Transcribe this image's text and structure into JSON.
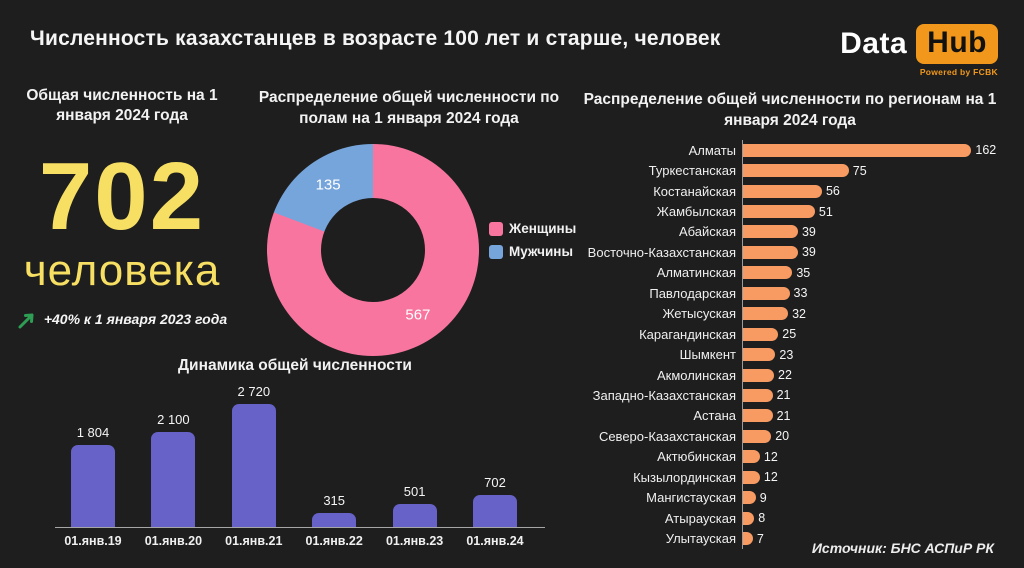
{
  "header": {
    "title": "Численность казахстанцев в возрасте 100 лет и старше, человек",
    "logo": {
      "data": "Data",
      "hub": "Hub",
      "powered": "Powered by FCBK",
      "orange": "#F1981C"
    }
  },
  "summary": {
    "title": "Общая численность на 1 января 2024 года",
    "value": "702",
    "unit": "человека",
    "change": "+40% к 1 января 2023 года",
    "value_color": "#F6DF63",
    "arrow_color": "#2E9E54",
    "arrow_icon": "up-right-arrow"
  },
  "source": "Источник: БНС АСПиР РК",
  "chart_data": [
    {
      "id": "gender_donut",
      "type": "pie",
      "donut": true,
      "title": "Распределение общей численности по полам на 1 января 2024 года",
      "labels": [
        "Женщины",
        "Мужчины"
      ],
      "values": [
        567,
        135
      ],
      "value_labels": [
        "567",
        "135"
      ],
      "colors": [
        "#F8759F",
        "#76A5DC"
      ],
      "legend_position": "right",
      "start_angle_deg": 0,
      "direction": "clockwise"
    },
    {
      "id": "dynamics_bar",
      "type": "bar",
      "title": "Динамика общей численности",
      "categories": [
        "01.янв.19",
        "01.янв.20",
        "01.янв.21",
        "01.янв.22",
        "01.янв.23",
        "01.янв.24"
      ],
      "values": [
        1804,
        2100,
        2720,
        315,
        501,
        702
      ],
      "value_labels": [
        "1 804",
        "2 100",
        "2 720",
        "315",
        "501",
        "702"
      ],
      "bar_color": "#6662C8",
      "ylim": [
        0,
        2900
      ],
      "grid": false,
      "value_labels_position": "above"
    },
    {
      "id": "regions_bar",
      "type": "bar",
      "orientation": "horizontal",
      "title": "Распределение общей численности по регионам на 1 января 2024 года",
      "categories": [
        "Алматы",
        "Туркестанская",
        "Костанайская",
        "Жамбылская",
        "Абайская",
        "Восточно-Казахстанская",
        "Алматинская",
        "Павлодарская",
        "Жетысуская",
        "Карагандинская",
        "Шымкент",
        "Акмолинская",
        "Западно-Казахстанская",
        "Астана",
        "Северо-Казахстанская",
        "Актюбинская",
        "Кызылординская",
        "Мангистауская",
        "Атырауская",
        "Улытауская"
      ],
      "values": [
        162,
        75,
        56,
        51,
        39,
        39,
        35,
        33,
        32,
        25,
        23,
        22,
        21,
        21,
        20,
        12,
        12,
        9,
        8,
        7
      ],
      "value_labels": [
        "162",
        "75",
        "56",
        "51",
        "39",
        "39",
        "35",
        "33",
        "32",
        "25",
        "23",
        "22",
        "21",
        "21",
        "20",
        "12",
        "12",
        "9",
        "8",
        "7"
      ],
      "bar_color": "#F89B63",
      "xlim": [
        0,
        170
      ],
      "value_labels_position": "right"
    }
  ]
}
